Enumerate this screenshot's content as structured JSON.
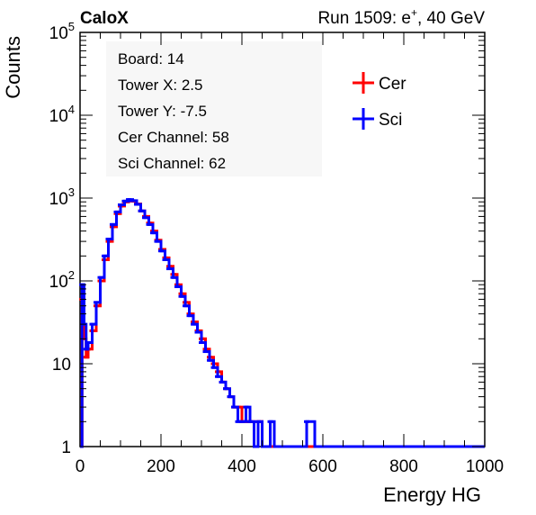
{
  "header": {
    "left": "CaloX",
    "right_prefix": "Run 1509: e",
    "right_sup": "+",
    "right_suffix": ", 40 GeV"
  },
  "info_box": [
    "Board: 14",
    "Tower X: 2.5",
    "Tower Y: -7.5",
    "Cer Channel: 58",
    "Sci Channel: 62"
  ],
  "chart_data": {
    "type": "line",
    "xlabel": "Energy HG",
    "ylabel": "Counts",
    "xlim": [
      0,
      1000
    ],
    "ylim": [
      1,
      100000
    ],
    "yscale": "log",
    "x_ticks": [
      "0",
      "200",
      "400",
      "600",
      "800",
      "1000"
    ],
    "y_ticks": [
      {
        "base": "1",
        "exp": ""
      },
      {
        "base": "10",
        "exp": ""
      },
      {
        "base": "10",
        "exp": "2"
      },
      {
        "base": "10",
        "exp": "3"
      },
      {
        "base": "10",
        "exp": "4"
      },
      {
        "base": "10",
        "exp": "5"
      }
    ],
    "legend_position": "top-right",
    "series": [
      {
        "name": "Cer",
        "color": "#ff0000",
        "x": [
          0,
          5,
          10,
          15,
          20,
          30,
          40,
          50,
          60,
          70,
          80,
          90,
          100,
          110,
          120,
          130,
          140,
          150,
          160,
          170,
          180,
          190,
          200,
          210,
          220,
          230,
          240,
          250,
          260,
          270,
          280,
          290,
          300,
          310,
          320,
          330,
          340,
          350,
          360,
          370,
          380,
          390,
          400,
          410,
          420,
          430,
          440,
          450,
          460,
          470,
          480,
          490,
          500,
          520,
          540,
          560,
          580,
          600,
          700,
          800,
          900,
          1000
        ],
        "y": [
          1,
          60,
          20,
          12,
          15,
          25,
          50,
          100,
          180,
          300,
          450,
          650,
          800,
          900,
          950,
          920,
          850,
          700,
          600,
          500,
          400,
          310,
          240,
          190,
          150,
          120,
          90,
          70,
          55,
          40,
          32,
          25,
          20,
          15,
          12,
          10,
          8,
          6,
          5,
          4,
          3,
          3,
          2,
          2,
          2,
          1,
          2,
          1,
          1,
          1,
          1,
          1,
          1,
          1,
          1,
          1,
          1,
          1,
          1,
          1,
          1,
          1
        ]
      },
      {
        "name": "Sci",
        "color": "#0000ff",
        "x": [
          0,
          5,
          10,
          15,
          20,
          30,
          40,
          50,
          60,
          70,
          80,
          90,
          100,
          110,
          120,
          130,
          140,
          150,
          160,
          170,
          180,
          190,
          200,
          210,
          220,
          230,
          240,
          250,
          260,
          270,
          280,
          290,
          300,
          310,
          320,
          330,
          340,
          350,
          360,
          370,
          380,
          390,
          400,
          410,
          420,
          430,
          440,
          450,
          460,
          470,
          480,
          490,
          500,
          520,
          540,
          560,
          580,
          600,
          700,
          800,
          900,
          1000
        ],
        "y": [
          1,
          90,
          30,
          15,
          18,
          30,
          55,
          110,
          200,
          320,
          480,
          680,
          830,
          920,
          960,
          930,
          840,
          700,
          580,
          480,
          380,
          300,
          230,
          180,
          140,
          110,
          85,
          65,
          50,
          38,
          30,
          24,
          18,
          14,
          11,
          9,
          7,
          6,
          5,
          4,
          3,
          2,
          2,
          3,
          2,
          1,
          2,
          1,
          1,
          2,
          1,
          1,
          1,
          1,
          1,
          2,
          1,
          1,
          1,
          1,
          1,
          1
        ]
      }
    ]
  }
}
